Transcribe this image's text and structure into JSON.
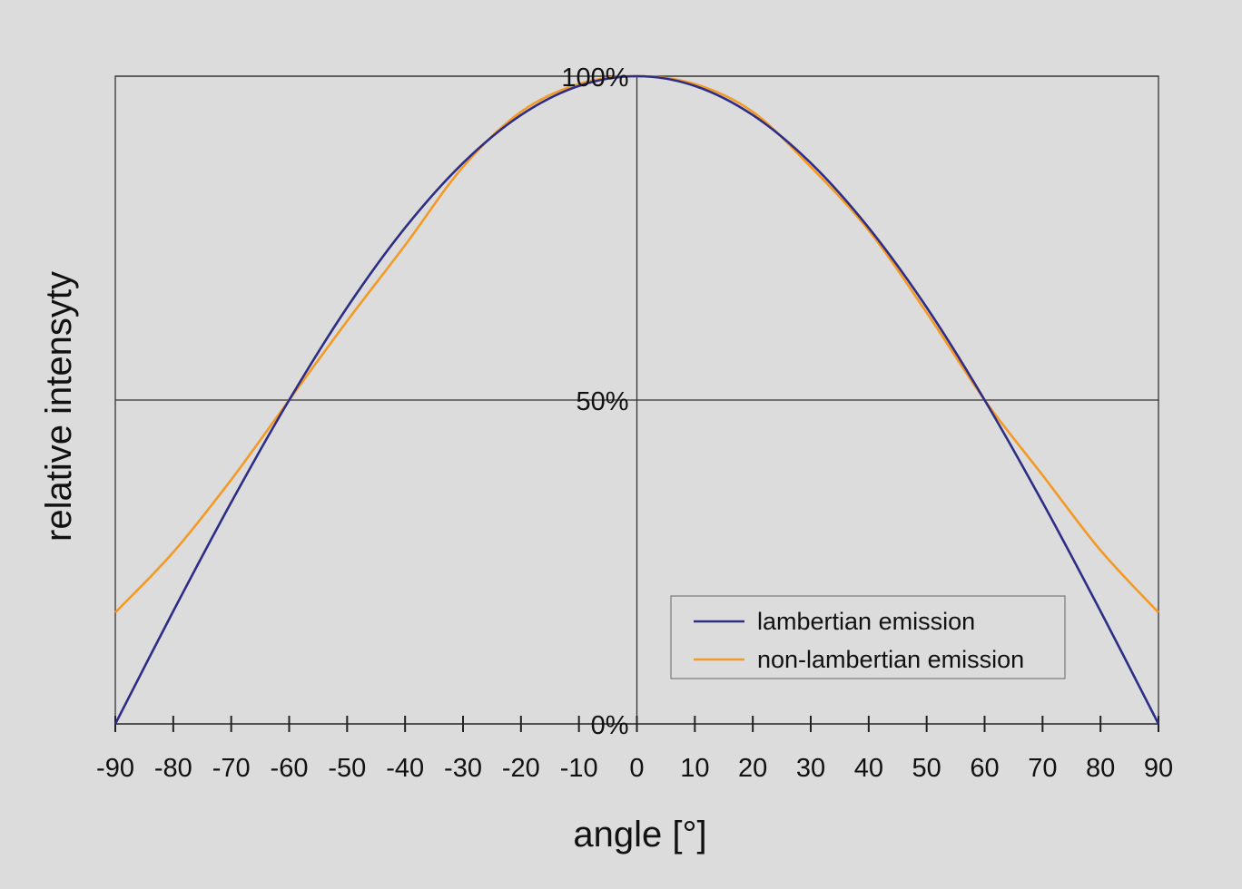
{
  "chart_data": {
    "type": "line",
    "title": "",
    "xlabel": "angle [°]",
    "ylabel": "relative intensyty",
    "xlim": [
      -90,
      90
    ],
    "ylim": [
      0,
      100
    ],
    "x_ticks": [
      -90,
      -80,
      -70,
      -60,
      -50,
      -40,
      -30,
      -20,
      -10,
      0,
      10,
      20,
      30,
      40,
      50,
      60,
      70,
      80,
      90
    ],
    "x_tick_labels": [
      "-90",
      "-80",
      "-70",
      "-60",
      "-50",
      "-40",
      "-30",
      "-20",
      "-10",
      "0",
      "10",
      "20",
      "30",
      "40",
      "50",
      "60",
      "70",
      "80",
      "90"
    ],
    "y_ticks": [
      0,
      50,
      100
    ],
    "y_tick_labels": [
      "0%",
      "50%",
      "100%"
    ],
    "grid": "horizontal at 50% and 100%",
    "legend_position": "bottom-right",
    "series": [
      {
        "name": "lambertian emission",
        "color": "#2e2d86",
        "x": [
          -90,
          -80,
          -70,
          -60,
          -50,
          -40,
          -30,
          -20,
          -10,
          0,
          10,
          20,
          30,
          40,
          50,
          60,
          70,
          80,
          90
        ],
        "y": [
          0,
          17.4,
          34.2,
          50,
          64.3,
          76.6,
          86.6,
          94.0,
          98.5,
          100,
          98.5,
          94.0,
          86.6,
          76.6,
          64.3,
          50,
          34.2,
          17.4,
          0
        ]
      },
      {
        "name": "non-lambertian emission",
        "color": "#f39a26",
        "x": [
          -90,
          -80,
          -70,
          -60,
          -50,
          -40,
          -30,
          -20,
          -10,
          0,
          10,
          20,
          30,
          40,
          50,
          60,
          70,
          80,
          90
        ],
        "y": [
          17.2,
          26.5,
          37.7,
          50,
          62.2,
          73.9,
          86.0,
          94.5,
          98.8,
          100,
          98.8,
          94.5,
          86.0,
          76.2,
          63.5,
          50,
          38.4,
          26.8,
          17.2
        ]
      }
    ]
  }
}
